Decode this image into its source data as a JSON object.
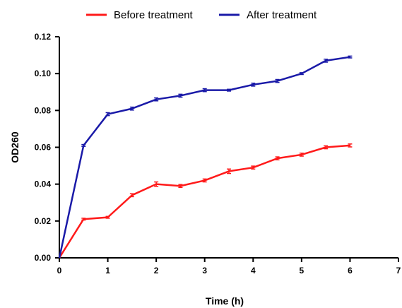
{
  "chart_data": {
    "type": "line",
    "title": "",
    "xlabel": "Time (h)",
    "ylabel": "OD260",
    "xlim": [
      0,
      7
    ],
    "ylim": [
      0,
      0.12
    ],
    "x_ticks": [
      "0",
      "1",
      "2",
      "3",
      "4",
      "5",
      "6",
      "7"
    ],
    "y_ticks": [
      "0.00",
      "0.02",
      "0.04",
      "0.06",
      "0.08",
      "0.10",
      "0.12"
    ],
    "grid": false,
    "legend_position": "top-center",
    "x": [
      0,
      0.5,
      1,
      1.5,
      2,
      2.5,
      3,
      3.5,
      4,
      4.5,
      5,
      5.5,
      6
    ],
    "series": [
      {
        "name": "Before treatment",
        "color": "#ff1a1a",
        "values": [
          0.0,
          0.021,
          0.022,
          0.034,
          0.04,
          0.039,
          0.042,
          0.047,
          0.049,
          0.054,
          0.056,
          0.06,
          0.061
        ],
        "errors": [
          0,
          0.0005,
          0.0005,
          0.0008,
          0.0012,
          0.0008,
          0.0008,
          0.0012,
          0.0008,
          0.0008,
          0.0008,
          0.0008,
          0.0008
        ]
      },
      {
        "name": "After treatment",
        "color": "#1a1aa8",
        "values": [
          0.0,
          0.061,
          0.078,
          0.081,
          0.086,
          0.088,
          0.091,
          0.091,
          0.094,
          0.096,
          0.1,
          0.107,
          0.109
        ],
        "errors": [
          0,
          0.0005,
          0.0008,
          0.0008,
          0.0008,
          0.0008,
          0.0008,
          0.0005,
          0.0008,
          0.0008,
          0.0005,
          0.0008,
          0.0005
        ]
      }
    ]
  }
}
